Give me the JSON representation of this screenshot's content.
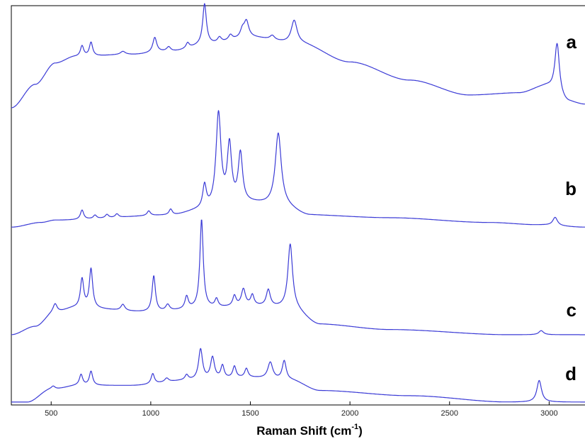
{
  "chart_data": {
    "type": "line",
    "xlabel": "Raman Shift (cm",
    "xlabel_sup": "-1",
    "xlabel_end": ")",
    "xlim": [
      300,
      3180
    ],
    "xticks": [
      500,
      1000,
      1500,
      2000,
      2500,
      3000
    ],
    "y_axis_ticks": "none",
    "grid": false,
    "line_color": "#3b3bd6",
    "series": [
      {
        "name": "a",
        "baseline": 0.04,
        "ramp": [
          [
            300,
            0.0
          ],
          [
            420,
            0.22
          ],
          [
            520,
            0.42
          ],
          [
            620,
            0.48
          ],
          [
            900,
            0.5
          ],
          [
            1100,
            0.53
          ],
          [
            1300,
            0.6
          ],
          [
            1500,
            0.66
          ],
          [
            1750,
            0.6
          ],
          [
            2000,
            0.43
          ],
          [
            2300,
            0.26
          ],
          [
            2600,
            0.12
          ],
          [
            2850,
            0.14
          ],
          [
            2980,
            0.2
          ],
          [
            3100,
            0.05
          ],
          [
            3180,
            0.03
          ]
        ],
        "peaks": [
          [
            655,
            0.1,
            10
          ],
          [
            700,
            0.13,
            10
          ],
          [
            860,
            0.03,
            15
          ],
          [
            1020,
            0.14,
            12
          ],
          [
            1090,
            0.04,
            12
          ],
          [
            1185,
            0.05,
            10
          ],
          [
            1270,
            0.38,
            11
          ],
          [
            1345,
            0.05,
            12
          ],
          [
            1400,
            0.05,
            12
          ],
          [
            1460,
            0.07,
            12
          ],
          [
            1480,
            0.15,
            14
          ],
          [
            1610,
            0.04,
            14
          ],
          [
            1720,
            0.22,
            18
          ],
          [
            3040,
            0.48,
            14
          ]
        ]
      },
      {
        "name": "b",
        "baseline": 0.01,
        "ramp": [
          [
            300,
            0.0
          ],
          [
            450,
            0.04
          ],
          [
            520,
            0.06
          ],
          [
            1100,
            0.1
          ],
          [
            1250,
            0.14
          ],
          [
            1500,
            0.2
          ],
          [
            1650,
            0.18
          ],
          [
            1800,
            0.1
          ],
          [
            2200,
            0.08
          ],
          [
            2700,
            0.04
          ],
          [
            2950,
            0.02
          ],
          [
            3180,
            0.0
          ]
        ],
        "peaks": [
          [
            655,
            0.08,
            10
          ],
          [
            720,
            0.03,
            10
          ],
          [
            780,
            0.03,
            10
          ],
          [
            830,
            0.03,
            10
          ],
          [
            990,
            0.04,
            10
          ],
          [
            1100,
            0.05,
            10
          ],
          [
            1270,
            0.2,
            11
          ],
          [
            1340,
            0.8,
            15
          ],
          [
            1395,
            0.5,
            13
          ],
          [
            1450,
            0.42,
            13
          ],
          [
            1640,
            0.62,
            18
          ],
          [
            3030,
            0.07,
            14
          ]
        ]
      },
      {
        "name": "c",
        "baseline": 0.0,
        "ramp": [
          [
            300,
            0.0
          ],
          [
            420,
            0.08
          ],
          [
            520,
            0.22
          ],
          [
            620,
            0.26
          ],
          [
            1000,
            0.22
          ],
          [
            1300,
            0.26
          ],
          [
            1500,
            0.28
          ],
          [
            1700,
            0.26
          ],
          [
            1850,
            0.1
          ],
          [
            2200,
            0.05
          ],
          [
            2800,
            0.0
          ],
          [
            3180,
            0.0
          ]
        ],
        "peaks": [
          [
            520,
            0.08,
            12
          ],
          [
            655,
            0.28,
            10
          ],
          [
            700,
            0.38,
            10
          ],
          [
            860,
            0.06,
            12
          ],
          [
            1015,
            0.35,
            10
          ],
          [
            1085,
            0.06,
            12
          ],
          [
            1180,
            0.12,
            10
          ],
          [
            1255,
            0.86,
            10
          ],
          [
            1330,
            0.08,
            10
          ],
          [
            1420,
            0.1,
            10
          ],
          [
            1465,
            0.16,
            12
          ],
          [
            1510,
            0.1,
            10
          ],
          [
            1590,
            0.16,
            12
          ],
          [
            1700,
            0.62,
            14
          ],
          [
            2960,
            0.04,
            14
          ]
        ]
      },
      {
        "name": "d",
        "baseline": 0.0,
        "ramp": [
          [
            300,
            0.0
          ],
          [
            380,
            0.0
          ],
          [
            500,
            0.2
          ],
          [
            640,
            0.26
          ],
          [
            900,
            0.26
          ],
          [
            1200,
            0.34
          ],
          [
            1500,
            0.38
          ],
          [
            1700,
            0.34
          ],
          [
            1850,
            0.18
          ],
          [
            2300,
            0.1
          ],
          [
            2800,
            0.0
          ],
          [
            3180,
            0.0
          ]
        ],
        "peaks": [
          [
            510,
            0.05,
            12
          ],
          [
            650,
            0.17,
            10
          ],
          [
            700,
            0.22,
            10
          ],
          [
            1010,
            0.16,
            10
          ],
          [
            1080,
            0.06,
            12
          ],
          [
            1180,
            0.08,
            10
          ],
          [
            1250,
            0.48,
            12
          ],
          [
            1310,
            0.34,
            12
          ],
          [
            1360,
            0.2,
            10
          ],
          [
            1420,
            0.18,
            10
          ],
          [
            1480,
            0.14,
            10
          ],
          [
            1600,
            0.26,
            15
          ],
          [
            1670,
            0.3,
            12
          ],
          [
            2950,
            0.34,
            14
          ]
        ]
      }
    ]
  }
}
